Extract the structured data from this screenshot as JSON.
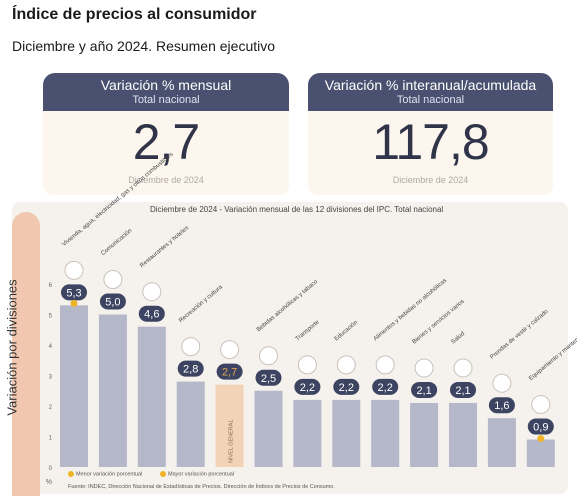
{
  "header": {
    "title": "Índice de precios al consumidor",
    "subtitle": "Diciembre y año 2024. Resumen ejecutivo"
  },
  "cards": [
    {
      "heading": "Variación % mensual",
      "scope": "Total nacional",
      "value": "2,7",
      "date": "Diciembre de 2024"
    },
    {
      "heading": "Variación % interanual/acumulada",
      "scope": "Total nacional",
      "value": "117,8",
      "date": "Diciembre de 2024"
    }
  ],
  "chart_data": {
    "type": "bar",
    "title": "Diciembre de 2024 - Variación mensual de las 12 divisiones del IPC. Total nacional",
    "ylabel": "Variación por divisiones",
    "yunit": "%",
    "ylim": [
      0,
      6
    ],
    "yticks": [
      "0",
      "1",
      "2",
      "3",
      "4",
      "5",
      "6"
    ],
    "categories": [
      "Vivienda, agua, electricidad, gas y otros combustibles",
      "Comunicación",
      "Restaurantes y hoteles",
      "Recreación y cultura",
      "NIVEL GENERAL",
      "Bebidas alcohólicas y tabaco",
      "Transporte",
      "Educación",
      "Alimentos y bebidas no alcohólicas",
      "Bienes y servicios varios",
      "Salud",
      "Prendas de vestir y calzado",
      "Equipamiento y mantenimiento del hogar"
    ],
    "values": [
      5.3,
      5.0,
      4.6,
      2.8,
      2.7,
      2.5,
      2.2,
      2.2,
      2.2,
      2.1,
      2.1,
      1.6,
      0.9
    ],
    "value_labels": [
      "5,3",
      "5,0",
      "4,6",
      "2,8",
      "2,7",
      "2,5",
      "2,2",
      "2,2",
      "2,2",
      "2,1",
      "2,1",
      "1,6",
      "0,9"
    ],
    "highlight_index": 4,
    "highlight_label": "NIVEL GENERAL",
    "max_marker_index": 0,
    "min_marker_index": 12,
    "legend": [
      "Menor variación porcentual",
      "Mayor variación porcentual"
    ],
    "colors": {
      "bar": "#b4b8c8",
      "highlight_bar": "#f2d3b8",
      "badge": "#3c4462",
      "highlight_badge_text": "#e0a550",
      "marker": "#f0b429"
    }
  },
  "source": "Fuente: INDEC, Dirección Nacional de Estadísticas de Precios. Dirección de Índices de Precios de Consumo."
}
